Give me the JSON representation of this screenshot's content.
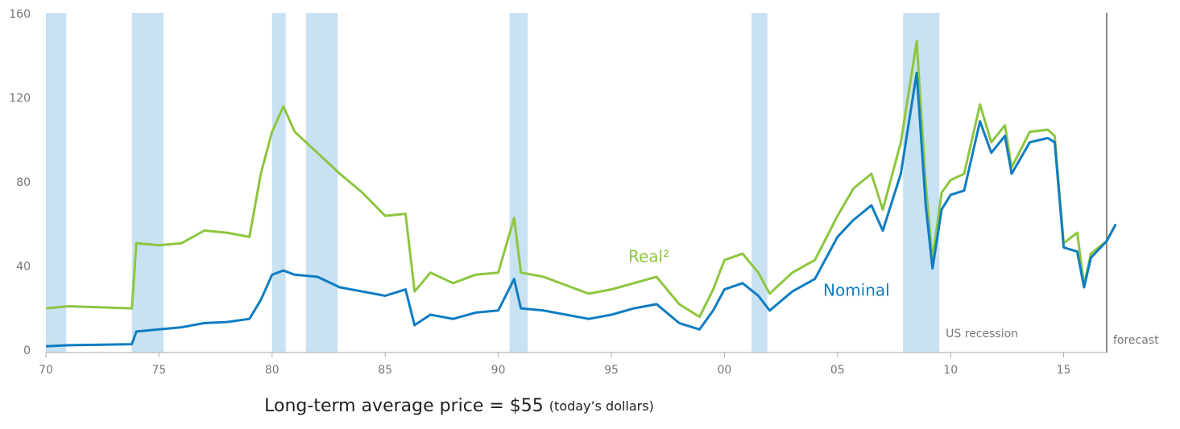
{
  "chart_data": {
    "type": "line",
    "x": [
      1970,
      1971,
      1973.8,
      1974.0,
      1975,
      1976,
      1977,
      1978,
      1979,
      1979.5,
      1980,
      1980.5,
      1981,
      1982,
      1983,
      1984,
      1985,
      1985.9,
      1986.3,
      1987,
      1988,
      1989,
      1990,
      1990.7,
      1991,
      1992,
      1993,
      1994,
      1995,
      1996,
      1997,
      1998,
      1998.9,
      1999.5,
      2000,
      2000.8,
      2001.5,
      2002,
      2003,
      2004,
      2005,
      2005.7,
      2006.5,
      2007,
      2007.8,
      2008.5,
      2008.9,
      2009.2,
      2009.6,
      2010,
      2010.6,
      2011.3,
      2011.8,
      2012.4,
      2012.7,
      2013.5,
      2014.3,
      2014.6,
      2015,
      2015.6,
      2015.9,
      2016.2,
      2016.9,
      2017.3
    ],
    "series": [
      {
        "name": "Real²",
        "color": "#8dc63f",
        "values": [
          21,
          22,
          21,
          52,
          51,
          52,
          58,
          57,
          55,
          85,
          105,
          117,
          105,
          95,
          85,
          76,
          65,
          66,
          29,
          38,
          33,
          37,
          38,
          64,
          38,
          36,
          32,
          28,
          30,
          33,
          36,
          23,
          17,
          30,
          44,
          47,
          38,
          28,
          38,
          44,
          65,
          78,
          85,
          68,
          100,
          148,
          80,
          44,
          76,
          82,
          85,
          118,
          100,
          108,
          88,
          105,
          106,
          103,
          52,
          57,
          32,
          47,
          53,
          61
        ]
      },
      {
        "name": "Nominal",
        "color": "#0f7dc2",
        "values": [
          3,
          3.5,
          4,
          10,
          11,
          12,
          14,
          14.5,
          16,
          25,
          37,
          39,
          37,
          36,
          31,
          29,
          27,
          30,
          13,
          18,
          16,
          19,
          20,
          35,
          21,
          20,
          18,
          16,
          18,
          21,
          23,
          14,
          11,
          20,
          30,
          33,
          27,
          20,
          29,
          35,
          55,
          63,
          70,
          58,
          85,
          133,
          70,
          40,
          68,
          75,
          77,
          110,
          95,
          103,
          85,
          100,
          102,
          100,
          50,
          48,
          31,
          45,
          53,
          61
        ]
      }
    ],
    "xlim": [
      1970,
      2020
    ],
    "ylim": [
      0,
      160
    ],
    "xticks": [
      {
        "value": 1970,
        "label": "70"
      },
      {
        "value": 1975,
        "label": "75"
      },
      {
        "value": 1980,
        "label": "80"
      },
      {
        "value": 1985,
        "label": "85"
      },
      {
        "value": 1990,
        "label": "90"
      },
      {
        "value": 1995,
        "label": "95"
      },
      {
        "value": 2000,
        "label": "00"
      },
      {
        "value": 2005,
        "label": "05"
      },
      {
        "value": 2010,
        "label": "10"
      },
      {
        "value": 2015,
        "label": "15"
      }
    ],
    "yticks": [
      0,
      40,
      80,
      120,
      160
    ],
    "recessions": [
      [
        1970,
        1970.9
      ],
      [
        1973.8,
        1975.2
      ],
      [
        1980,
        1980.6
      ],
      [
        1981.5,
        1982.9
      ],
      [
        1990.5,
        1991.3
      ],
      [
        2001.2,
        2001.9
      ],
      [
        2007.9,
        2009.5
      ]
    ],
    "recession_label": "US recession",
    "recession_color": "#c8e1f3",
    "forecast_start": 2016.9,
    "forecast_label": "forecast",
    "note": "Long-term average price = $55",
    "note_sub": "(today’s dollars)"
  }
}
